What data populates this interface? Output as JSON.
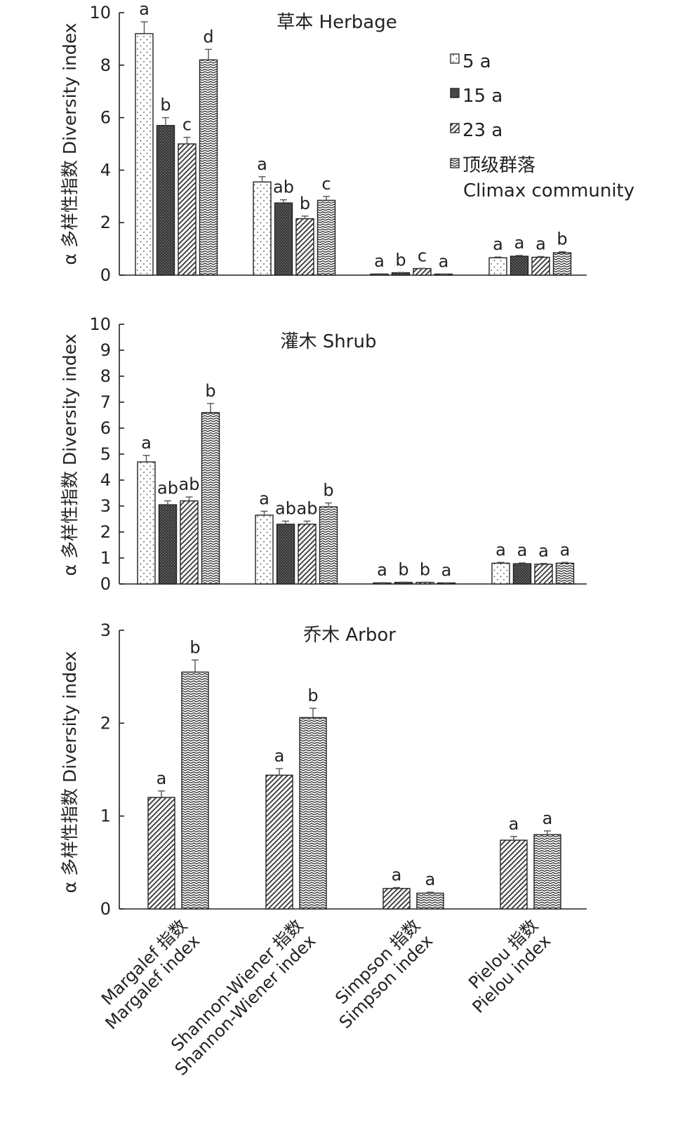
{
  "chart_data": [
    {
      "type": "bar",
      "title": "草本 Herbage",
      "ylabel": "α 多样性指数 Diversity index",
      "ylim": [
        0,
        10
      ],
      "yticks": [
        0,
        2,
        4,
        6,
        8,
        10
      ],
      "categories": [
        "Margalef 指数 Margalef index",
        "Shannon-Wiener 指数 Shannon-Wiener index",
        "Simpson 指数 Simpson index",
        "Pielou 指数 Pielou index"
      ],
      "series": [
        {
          "name": "5 a",
          "values": [
            9.2,
            3.55,
            0.04,
            0.66
          ],
          "errors": [
            0.45,
            0.2,
            0.01,
            0.03
          ],
          "labels": [
            "a",
            "a",
            "a",
            "a"
          ],
          "pattern": "dots"
        },
        {
          "name": "15 a",
          "values": [
            5.7,
            2.75,
            0.09,
            0.72
          ],
          "errors": [
            0.3,
            0.12,
            0.01,
            0.03
          ],
          "labels": [
            "b",
            "ab",
            "b",
            "a"
          ],
          "pattern": "dark"
        },
        {
          "name": "23 a",
          "values": [
            5.0,
            2.15,
            0.25,
            0.68
          ],
          "errors": [
            0.25,
            0.1,
            0.01,
            0.03
          ],
          "labels": [
            "c",
            "b",
            "c",
            "a"
          ],
          "pattern": "diag"
        },
        {
          "name": "顶级群落 Climax community",
          "values": [
            8.2,
            2.85,
            0.03,
            0.85
          ],
          "errors": [
            0.4,
            0.15,
            0.01,
            0.04
          ],
          "labels": [
            "d",
            "c",
            "a",
            "b"
          ],
          "pattern": "zigzag"
        }
      ],
      "legend": {
        "position": "top-right",
        "items": [
          "5 a",
          "15 a",
          "23 a",
          "顶级群落",
          "Climax community"
        ]
      }
    },
    {
      "type": "bar",
      "title": "灌木 Shrub",
      "ylabel": "α 多样性指数 Diversity index",
      "ylim": [
        0,
        10
      ],
      "yticks": [
        0,
        1,
        2,
        3,
        4,
        5,
        6,
        7,
        8,
        9,
        10
      ],
      "categories": [
        "Margalef 指数 Margalef index",
        "Shannon-Wiener 指数 Shannon-Wiener index",
        "Simpson 指数 Simpson index",
        "Pielou 指数 Pielou index"
      ],
      "series": [
        {
          "name": "5 a",
          "values": [
            4.7,
            2.65,
            0.04,
            0.8
          ],
          "errors": [
            0.25,
            0.15,
            0.01,
            0.03
          ],
          "labels": [
            "a",
            "a",
            "a",
            "a"
          ],
          "pattern": "dots"
        },
        {
          "name": "15 a",
          "values": [
            3.05,
            2.3,
            0.06,
            0.78
          ],
          "errors": [
            0.15,
            0.12,
            0.01,
            0.03
          ],
          "labels": [
            "ab",
            "ab",
            "b",
            "a"
          ],
          "pattern": "dark"
        },
        {
          "name": "23 a",
          "values": [
            3.2,
            2.3,
            0.06,
            0.76
          ],
          "errors": [
            0.15,
            0.12,
            0.01,
            0.03
          ],
          "labels": [
            "ab",
            "ab",
            "b",
            "a"
          ],
          "pattern": "diag"
        },
        {
          "name": "顶级群落 Climax community",
          "values": [
            6.6,
            2.97,
            0.03,
            0.8
          ],
          "errors": [
            0.35,
            0.15,
            0.01,
            0.03
          ],
          "labels": [
            "b",
            "b",
            "a",
            "a"
          ],
          "pattern": "zigzag"
        }
      ]
    },
    {
      "type": "bar",
      "title": "乔木 Arbor",
      "ylabel": "α 多样性指数 Diversity index",
      "ylim": [
        0,
        3
      ],
      "yticks": [
        0,
        1,
        2,
        3
      ],
      "categories": [
        "Margalef 指数 Margalef index",
        "Shannon-Wiener 指数 Shannon-Wiener index",
        "Simpson 指数 Simpson index",
        "Pielou 指数 Pielou index"
      ],
      "category_labels": [
        [
          "Margalef 指数",
          "Margalef index"
        ],
        [
          "Shannon-Wiener 指数",
          "Shannon-Wiener index"
        ],
        [
          "Simpson 指数",
          "Simpson index"
        ],
        [
          "Pielou 指数",
          "Pielou index"
        ]
      ],
      "series": [
        {
          "name": "23 a",
          "values": [
            1.2,
            1.44,
            0.22,
            0.74
          ],
          "errors": [
            0.07,
            0.07,
            0.01,
            0.04
          ],
          "labels": [
            "a",
            "a",
            "a",
            "a"
          ],
          "pattern": "diag"
        },
        {
          "name": "顶级群落 Climax community",
          "values": [
            2.55,
            2.06,
            0.17,
            0.8
          ],
          "errors": [
            0.13,
            0.1,
            0.01,
            0.04
          ],
          "labels": [
            "b",
            "b",
            "a",
            "a"
          ],
          "pattern": "zigzag"
        }
      ]
    }
  ]
}
